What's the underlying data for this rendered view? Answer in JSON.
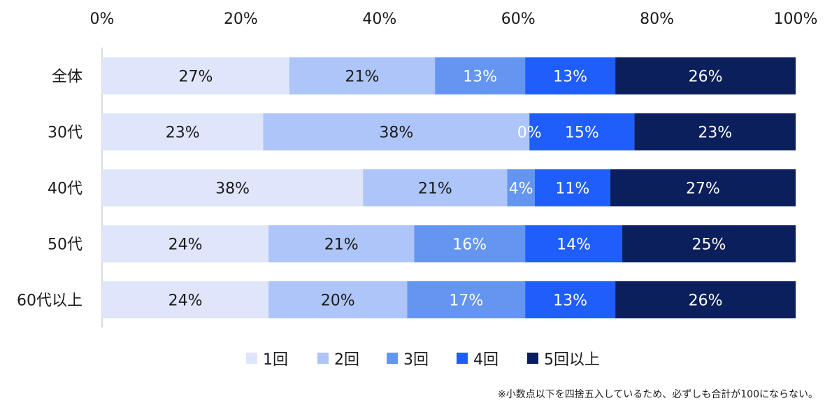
{
  "chart_data": {
    "type": "bar",
    "orientation": "horizontal",
    "stacked": "percent",
    "xlim": [
      0,
      100
    ],
    "x_ticks": [
      "0%",
      "20%",
      "40%",
      "60%",
      "80%",
      "100%"
    ],
    "categories": [
      "全体",
      "30代",
      "40代",
      "50代",
      "60代以上"
    ],
    "series": [
      {
        "name": "1回",
        "color": "#dfe6fb",
        "values": [
          27,
          23,
          38,
          24,
          24
        ],
        "labels": [
          "27%",
          "23%",
          "38%",
          "24%",
          "24%"
        ]
      },
      {
        "name": "2回",
        "color": "#adc5f8",
        "values": [
          21,
          38,
          21,
          21,
          20
        ],
        "labels": [
          "21%",
          "38%",
          "21%",
          "21%",
          "20%"
        ]
      },
      {
        "name": "3回",
        "color": "#6495f0",
        "values": [
          13,
          0,
          4,
          16,
          17
        ],
        "labels": [
          "13%",
          "0%",
          "4%",
          "16%",
          "17%"
        ]
      },
      {
        "name": "4回",
        "color": "#1f5efb",
        "values": [
          13,
          15,
          11,
          14,
          13
        ],
        "labels": [
          "13%",
          "15%",
          "11%",
          "14%",
          "13%"
        ]
      },
      {
        "name": "5回以上",
        "color": "#0b1f5c",
        "values": [
          26,
          23,
          27,
          25,
          26
        ],
        "labels": [
          "26%",
          "23%",
          "27%",
          "25%",
          "26%"
        ]
      }
    ],
    "legend_position": "bottom",
    "grid": false
  },
  "note": "※小数点以下を四捨五入しているため、必ずしも合計が100にならない。"
}
